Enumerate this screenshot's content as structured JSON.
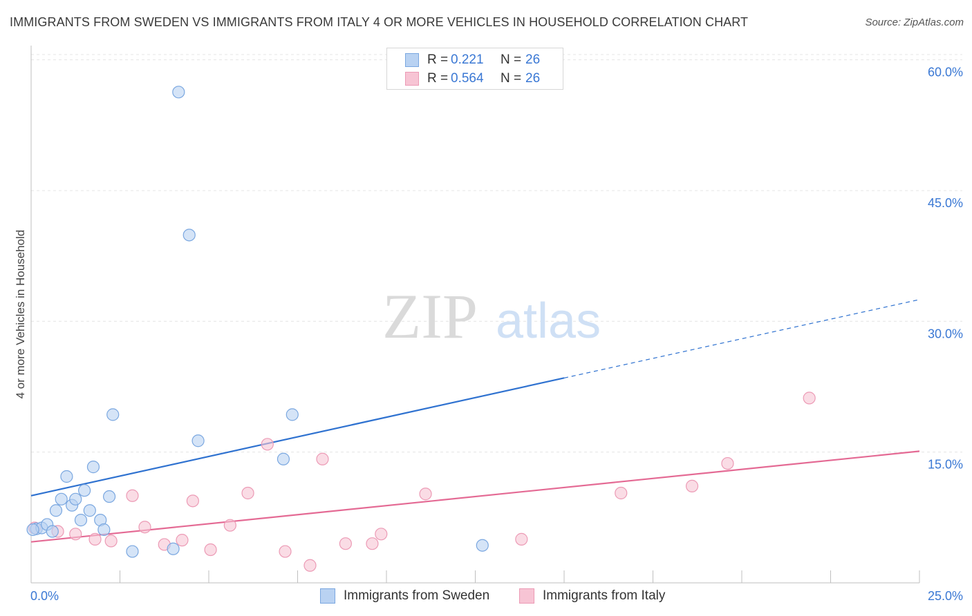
{
  "header": {
    "title": "IMMIGRANTS FROM SWEDEN VS IMMIGRANTS FROM ITALY 4 OR MORE VEHICLES IN HOUSEHOLD CORRELATION CHART",
    "source": "Source: ZipAtlas.com"
  },
  "watermark": {
    "zip": "ZIP",
    "atlas": "atlas"
  },
  "legend": {
    "r_label": "R =",
    "n_label": "N =",
    "sweden": {
      "r": "0.221",
      "n": "26"
    },
    "italy": {
      "r": "0.564",
      "n": "26"
    }
  },
  "colors": {
    "sweden_fill": "#b9d2f2",
    "sweden_stroke": "#7aa7e0",
    "sweden_line": "#2f72d0",
    "italy_fill": "#f7c4d4",
    "italy_stroke": "#ec9ab5",
    "italy_line": "#e46a94",
    "tick_label": "#3a78d4"
  },
  "chart_data": {
    "type": "scatter",
    "title": "IMMIGRANTS FROM SWEDEN VS IMMIGRANTS FROM ITALY 4 OR MORE VEHICLES IN HOUSEHOLD CORRELATION CHART",
    "xlabel": "",
    "ylabel": "4 or more Vehicles in Household",
    "xlim": [
      0,
      25
    ],
    "ylim": [
      0,
      61
    ],
    "y_ticks": [
      15,
      30,
      45,
      60
    ],
    "y_tick_labels": [
      "15.0%",
      "30.0%",
      "45.0%",
      "60.0%"
    ],
    "x_tick_labels": [
      "0.0%",
      "25.0%"
    ],
    "series": [
      {
        "name": "Immigrants from Sweden",
        "r": 0.221,
        "n": 26,
        "points": [
          {
            "x": 0.15,
            "y": 6.2
          },
          {
            "x": 0.3,
            "y": 6.3
          },
          {
            "x": 0.45,
            "y": 6.7
          },
          {
            "x": 0.6,
            "y": 5.9
          },
          {
            "x": 0.7,
            "y": 8.3
          },
          {
            "x": 0.85,
            "y": 9.6
          },
          {
            "x": 1.0,
            "y": 12.2
          },
          {
            "x": 1.15,
            "y": 8.9
          },
          {
            "x": 1.25,
            "y": 9.6
          },
          {
            "x": 1.4,
            "y": 7.2
          },
          {
            "x": 1.5,
            "y": 10.6
          },
          {
            "x": 1.65,
            "y": 8.3
          },
          {
            "x": 1.75,
            "y": 13.3
          },
          {
            "x": 1.95,
            "y": 7.2
          },
          {
            "x": 2.05,
            "y": 6.1
          },
          {
            "x": 2.2,
            "y": 9.9
          },
          {
            "x": 2.3,
            "y": 19.3
          },
          {
            "x": 2.85,
            "y": 3.6
          },
          {
            "x": 4.0,
            "y": 3.9
          },
          {
            "x": 4.15,
            "y": 56.3
          },
          {
            "x": 4.45,
            "y": 39.9
          },
          {
            "x": 4.7,
            "y": 16.3
          },
          {
            "x": 7.1,
            "y": 14.2
          },
          {
            "x": 7.35,
            "y": 19.3
          },
          {
            "x": 12.7,
            "y": 4.3
          },
          {
            "x": 0.05,
            "y": 6.1
          }
        ],
        "trend": {
          "x0": 0,
          "y0": 10.0,
          "x1": 15.0,
          "y1": 23.5,
          "x_dash_end": 25.0,
          "y_dash_end": 32.5
        }
      },
      {
        "name": "Immigrants from Italy",
        "r": 0.564,
        "n": 26,
        "points": [
          {
            "x": 0.1,
            "y": 6.3
          },
          {
            "x": 0.75,
            "y": 5.9
          },
          {
            "x": 1.25,
            "y": 5.6
          },
          {
            "x": 1.8,
            "y": 5.0
          },
          {
            "x": 2.25,
            "y": 4.8
          },
          {
            "x": 2.85,
            "y": 10.0
          },
          {
            "x": 3.2,
            "y": 6.4
          },
          {
            "x": 3.75,
            "y": 4.4
          },
          {
            "x": 4.25,
            "y": 4.9
          },
          {
            "x": 4.55,
            "y": 9.4
          },
          {
            "x": 5.05,
            "y": 3.8
          },
          {
            "x": 5.6,
            "y": 6.6
          },
          {
            "x": 6.1,
            "y": 10.3
          },
          {
            "x": 6.65,
            "y": 15.9
          },
          {
            "x": 7.15,
            "y": 3.6
          },
          {
            "x": 7.85,
            "y": 2.0
          },
          {
            "x": 8.2,
            "y": 14.2
          },
          {
            "x": 8.85,
            "y": 4.5
          },
          {
            "x": 9.6,
            "y": 4.5
          },
          {
            "x": 9.85,
            "y": 5.6
          },
          {
            "x": 11.1,
            "y": 10.2
          },
          {
            "x": 13.8,
            "y": 5.0
          },
          {
            "x": 16.6,
            "y": 10.3
          },
          {
            "x": 18.6,
            "y": 11.1
          },
          {
            "x": 19.6,
            "y": 13.7
          },
          {
            "x": 21.9,
            "y": 21.2
          }
        ],
        "trend": {
          "x0": 0,
          "y0": 4.7,
          "x1": 25.0,
          "y1": 15.1
        }
      }
    ]
  }
}
